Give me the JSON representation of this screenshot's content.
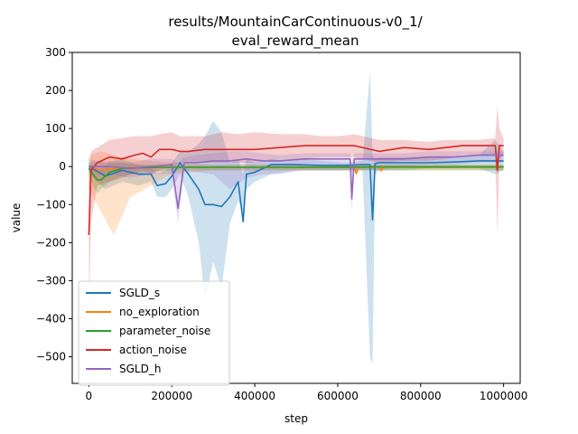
{
  "chart_data": {
    "type": "line",
    "title_lines": [
      "results/MountainCarContinuous-v0_1/",
      "eval_reward_mean"
    ],
    "xlabel": "step",
    "ylabel": "value",
    "xlim": [
      -40000,
      1040000
    ],
    "ylim": [
      -570,
      300
    ],
    "xticks": [
      0,
      200000,
      400000,
      600000,
      800000,
      1000000
    ],
    "xtick_labels": [
      "0",
      "200000",
      "400000",
      "600000",
      "800000",
      "1000000"
    ],
    "yticks": [
      300,
      200,
      100,
      0,
      -100,
      -200,
      -300,
      -400,
      -500
    ],
    "ytick_labels": [
      "300",
      "200",
      "100",
      "0",
      "−100",
      "−200",
      "−300",
      "−400",
      "−500"
    ],
    "grid": false,
    "legend_position": "lower-left",
    "series": [
      {
        "name": "SGLD_s",
        "color": "#1f77b4",
        "x": [
          0,
          40000,
          80000,
          120000,
          150000,
          165000,
          185000,
          200000,
          220000,
          240000,
          265000,
          280000,
          300000,
          320000,
          340000,
          360000,
          372000,
          380000,
          400000,
          440000,
          500000,
          560000,
          620000,
          660000,
          678000,
          684000,
          690000,
          700000,
          760000,
          820000,
          880000,
          940000,
          980000,
          1000000
        ],
        "y": [
          0,
          -25,
          -10,
          -20,
          -20,
          -50,
          -45,
          -25,
          10,
          -20,
          -60,
          -100,
          -100,
          -105,
          -80,
          -40,
          -145,
          -20,
          -15,
          5,
          5,
          3,
          3,
          5,
          5,
          -140,
          8,
          10,
          10,
          10,
          12,
          15,
          15,
          15
        ],
        "band_upper": [
          20,
          10,
          20,
          5,
          0,
          -20,
          -10,
          10,
          40,
          40,
          60,
          80,
          120,
          90,
          10,
          20,
          -20,
          20,
          10,
          20,
          20,
          15,
          10,
          15,
          250,
          30,
          20,
          25,
          25,
          25,
          25,
          30,
          70,
          40
        ],
        "band_lower": [
          -20,
          -60,
          -40,
          -50,
          -40,
          -80,
          -80,
          -60,
          -20,
          -80,
          -200,
          -350,
          -250,
          -320,
          -150,
          -90,
          -120,
          -60,
          -40,
          -20,
          -10,
          -10,
          -10,
          -10,
          -500,
          -520,
          -20,
          -10,
          -10,
          -5,
          -5,
          -5,
          -20,
          -10
        ]
      },
      {
        "name": "no_exploration",
        "color": "#ff7f0e",
        "x": [
          0,
          30000,
          60000,
          100000,
          200000,
          300000,
          400000,
          500000,
          600000,
          640000,
          645000,
          650000,
          700000,
          705000,
          710000,
          800000,
          900000,
          1000000
        ],
        "y": [
          0,
          -10,
          -5,
          -3,
          -2,
          -2,
          -2,
          -2,
          -2,
          -2,
          -18,
          -2,
          -2,
          -10,
          -2,
          -2,
          -2,
          -2
        ],
        "band_upper": [
          30,
          40,
          30,
          20,
          10,
          5,
          5,
          5,
          5,
          5,
          5,
          5,
          5,
          5,
          5,
          5,
          5,
          5
        ],
        "band_lower": [
          -60,
          -120,
          -180,
          -80,
          -20,
          -10,
          -10,
          -10,
          -10,
          -10,
          -30,
          -10,
          -10,
          -20,
          -10,
          -10,
          -10,
          -10
        ]
      },
      {
        "name": "parameter_noise",
        "color": "#2ca02c",
        "x": [
          0,
          10000,
          20000,
          30000,
          50000,
          80000,
          120000,
          200000,
          300000,
          400000,
          500000,
          600000,
          700000,
          800000,
          900000,
          1000000
        ],
        "y": [
          -5,
          -20,
          -35,
          -35,
          -15,
          -5,
          -3,
          -2,
          -2,
          -2,
          -2,
          -2,
          -1,
          -1,
          -1,
          -1
        ],
        "band_upper": [
          10,
          0,
          -10,
          -5,
          10,
          10,
          5,
          5,
          5,
          5,
          5,
          5,
          5,
          5,
          5,
          5
        ],
        "band_lower": [
          -30,
          -50,
          -70,
          -60,
          -40,
          -25,
          -15,
          -10,
          -10,
          -10,
          -10,
          -10,
          -10,
          -10,
          -10,
          -10
        ]
      },
      {
        "name": "action_noise",
        "color": "#d62728",
        "x": [
          0,
          5000,
          20000,
          50000,
          80000,
          110000,
          130000,
          150000,
          170000,
          200000,
          220000,
          240000,
          280000,
          320000,
          360000,
          400000,
          460000,
          520000,
          560000,
          600000,
          640000,
          700000,
          760000,
          820000,
          860000,
          900000,
          940000,
          980000,
          985000,
          990000,
          1000000
        ],
        "y": [
          -180,
          -10,
          10,
          25,
          20,
          30,
          35,
          25,
          45,
          45,
          40,
          40,
          45,
          45,
          45,
          45,
          50,
          55,
          55,
          55,
          55,
          40,
          50,
          45,
          50,
          55,
          55,
          55,
          -10,
          55,
          55
        ],
        "band_upper": [
          -50,
          40,
          50,
          70,
          75,
          80,
          80,
          80,
          85,
          90,
          80,
          80,
          80,
          90,
          85,
          90,
          85,
          85,
          80,
          80,
          85,
          70,
          70,
          65,
          70,
          70,
          70,
          75,
          160,
          100,
          75
        ],
        "band_lower": [
          -400,
          -150,
          -50,
          -40,
          -30,
          -20,
          -10,
          -20,
          -10,
          0,
          10,
          10,
          10,
          10,
          10,
          10,
          20,
          20,
          25,
          25,
          25,
          10,
          15,
          15,
          20,
          30,
          30,
          30,
          -180,
          20,
          30
        ]
      },
      {
        "name": "SGLD_h",
        "color": "#9467bd",
        "x": [
          0,
          50000,
          100000,
          150000,
          200000,
          215000,
          230000,
          260000,
          300000,
          340000,
          380000,
          420000,
          460000,
          520000,
          580000,
          620000,
          630000,
          634000,
          640000,
          700000,
          760000,
          820000,
          880000,
          940000,
          1000000
        ],
        "y": [
          0,
          0,
          -5,
          0,
          5,
          -110,
          10,
          10,
          15,
          15,
          20,
          15,
          15,
          20,
          20,
          20,
          20,
          -85,
          20,
          20,
          20,
          25,
          25,
          30,
          30
        ],
        "band_upper": [
          10,
          15,
          10,
          20,
          20,
          10,
          25,
          30,
          35,
          40,
          40,
          35,
          30,
          35,
          35,
          35,
          35,
          10,
          35,
          35,
          35,
          40,
          40,
          40,
          40
        ],
        "band_lower": [
          -15,
          -20,
          -30,
          -20,
          -20,
          -150,
          -10,
          -15,
          -20,
          -60,
          -30,
          -20,
          -20,
          -10,
          -10,
          -10,
          -10,
          -120,
          -10,
          -10,
          0,
          5,
          5,
          10,
          10
        ]
      }
    ]
  }
}
